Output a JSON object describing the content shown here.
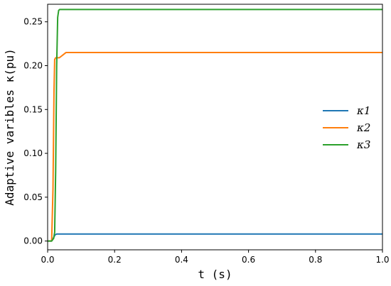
{
  "chart_data": {
    "type": "line",
    "xlabel": "t (s)",
    "ylabel": "Adaptive varibles κ(pu)",
    "xlim": [
      0.0,
      1.0
    ],
    "ylim": [
      -0.01,
      0.27
    ],
    "xticks": [
      "0.0",
      "0.2",
      "0.4",
      "0.6",
      "0.8",
      "1.0"
    ],
    "yticks": [
      "0.00",
      "0.05",
      "0.10",
      "0.15",
      "0.20",
      "0.25"
    ],
    "grid": false,
    "legend_position": "center-right",
    "series": [
      {
        "name": "κ1",
        "color": "#1f77b4",
        "x": [
          0.0,
          0.012,
          0.018,
          0.022,
          0.027,
          0.04,
          1.0
        ],
        "y": [
          0.0,
          0.0,
          0.004,
          0.007,
          0.008,
          0.008,
          0.008
        ]
      },
      {
        "name": "κ2",
        "color": "#ff7f0e",
        "x": [
          0.0,
          0.012,
          0.016,
          0.019,
          0.021,
          0.024,
          0.028,
          0.035,
          0.045,
          0.055,
          0.065,
          1.0
        ],
        "y": [
          0.0,
          0.0,
          0.06,
          0.17,
          0.207,
          0.209,
          0.209,
          0.209,
          0.212,
          0.215,
          0.215,
          0.215
        ]
      },
      {
        "name": "κ3",
        "color": "#2ca02c",
        "x": [
          0.0,
          0.012,
          0.018,
          0.021,
          0.024,
          0.027,
          0.03,
          0.033,
          0.036,
          1.0
        ],
        "y": [
          0.0,
          0.0,
          0.003,
          0.01,
          0.08,
          0.2,
          0.255,
          0.263,
          0.264,
          0.264
        ]
      }
    ]
  }
}
